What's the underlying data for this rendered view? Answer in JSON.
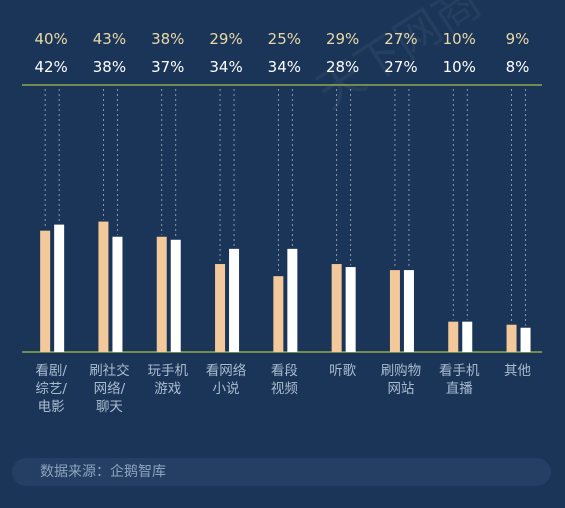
{
  "chart_data": {
    "type": "bar",
    "categories": [
      [
        "看剧/",
        "综艺/",
        "电影"
      ],
      [
        "刷社交",
        "网络/",
        "聊天"
      ],
      [
        "玩手机",
        "游戏"
      ],
      [
        "看网络",
        "小说"
      ],
      [
        "看段",
        "视频"
      ],
      [
        "听歌"
      ],
      [
        "刷购物",
        "网站"
      ],
      [
        "看手机",
        "直播"
      ],
      [
        "其他"
      ]
    ],
    "series": [
      {
        "values": [
          40,
          43,
          38,
          29,
          25,
          29,
          27,
          10,
          9
        ],
        "labels": [
          "40%",
          "43%",
          "38%",
          "29%",
          "25%",
          "29%",
          "27%",
          "10%",
          "9%"
        ],
        "color": "#f3c89a"
      },
      {
        "values": [
          42,
          38,
          37,
          34,
          34,
          28,
          27,
          10,
          8
        ],
        "labels": [
          "42%",
          "38%",
          "37%",
          "34%",
          "34%",
          "28%",
          "27%",
          "10%",
          "8%"
        ],
        "color": "#ffffff"
      }
    ],
    "ylim": [
      0,
      60
    ],
    "colors": {
      "background": "#1b3558",
      "row1_text": "#e8d9a8",
      "row2_text": "#ffffff",
      "rule": "#a7c04a",
      "category_text": "#a9bccf",
      "dashes": "#c3cfdb"
    }
  },
  "source": "数据来源：企鹅智库",
  "watermark": "天下网商"
}
